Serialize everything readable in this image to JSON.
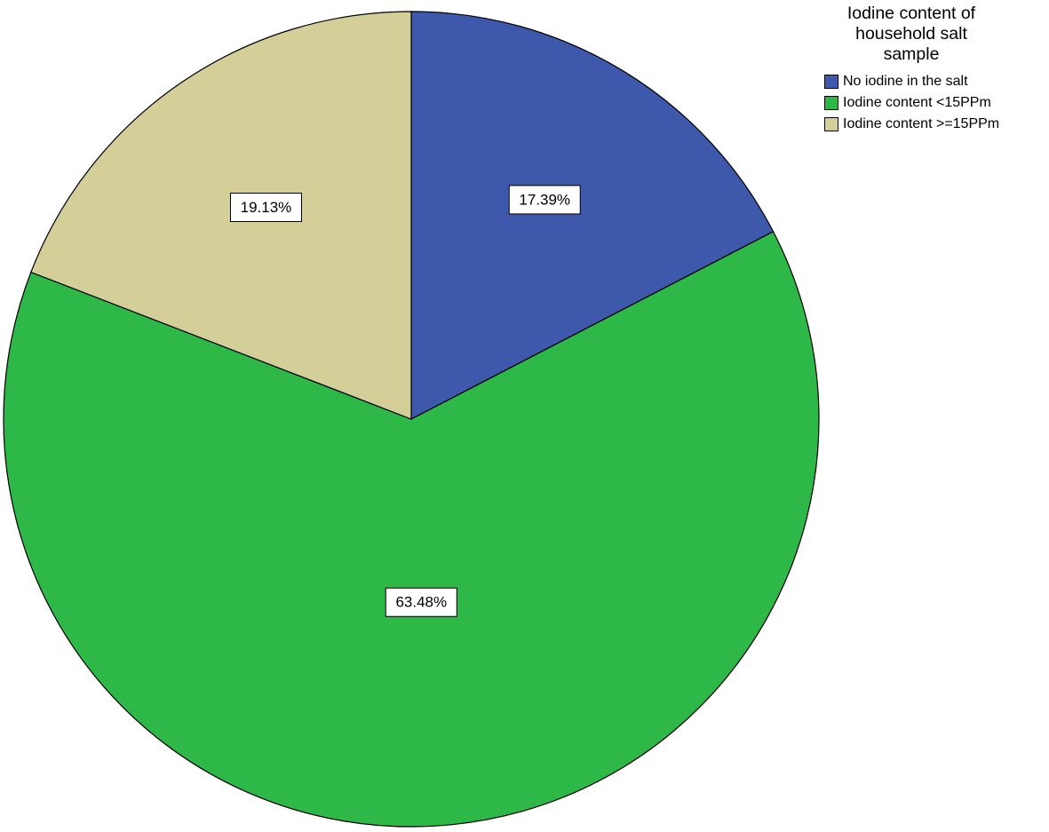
{
  "chart_data": {
    "type": "pie",
    "title": "",
    "legend": {
      "title": "Iodine content of household salt sample",
      "placement": "top-right"
    },
    "slices": [
      {
        "name": "No iodine in the salt",
        "value": 17.39,
        "label": "17.39%",
        "color": "#3e58ac"
      },
      {
        "name": "Iodine content <15PPm",
        "value": 63.48,
        "label": "63.48%",
        "color": "#2eb848"
      },
      {
        "name": "Iodine content >=15PPm",
        "value": 19.13,
        "label": "19.13%",
        "color": "#d4ce99"
      }
    ]
  }
}
